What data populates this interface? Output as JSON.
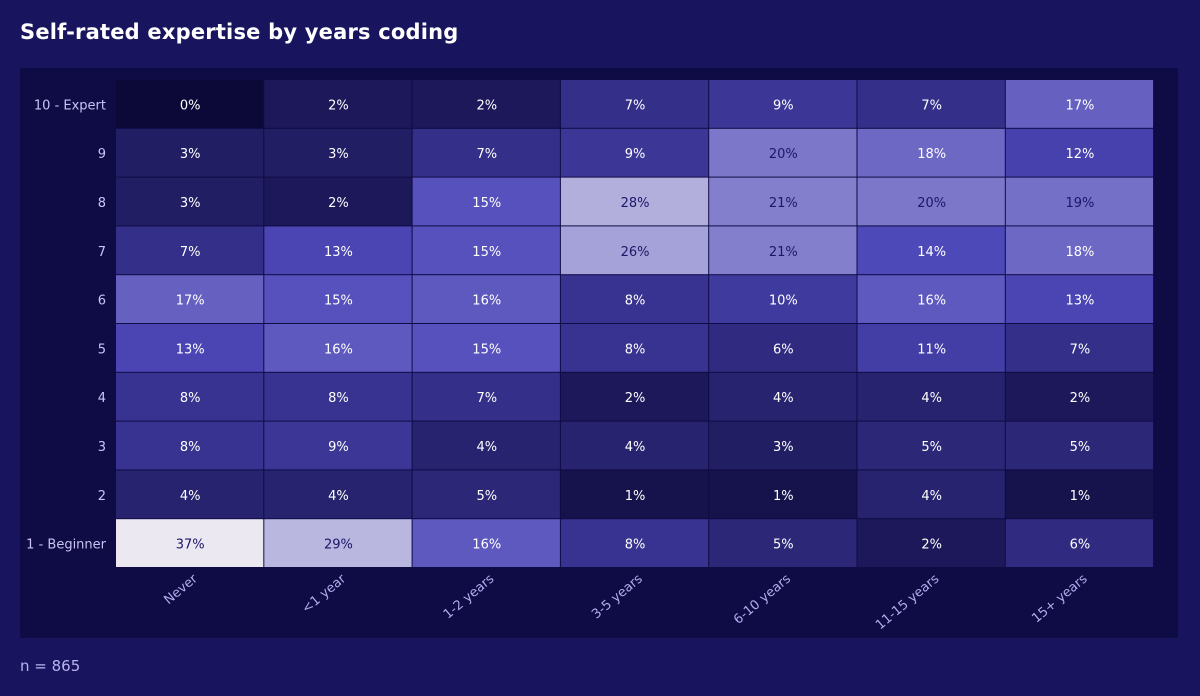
{
  "title": "Self-rated expertise by years coding",
  "footnote": "n = 865",
  "chart_data": {
    "type": "heatmap",
    "title": "Self-rated expertise by years coding",
    "x": [
      "Never",
      "<1 year",
      "1-2 years",
      "3-5 years",
      "6-10 years",
      "11-15 years",
      "15+ years"
    ],
    "y": [
      "10 - Expert",
      "9",
      "8",
      "7",
      "6",
      "5",
      "4",
      "3",
      "2",
      "1 - Beginner"
    ],
    "values": [
      [
        0,
        2,
        2,
        7,
        9,
        7,
        17
      ],
      [
        3,
        3,
        7,
        9,
        20,
        18,
        12
      ],
      [
        3,
        2,
        15,
        28,
        21,
        20,
        19
      ],
      [
        7,
        13,
        15,
        26,
        21,
        14,
        18
      ],
      [
        17,
        15,
        16,
        8,
        10,
        16,
        13
      ],
      [
        13,
        16,
        15,
        8,
        6,
        11,
        7
      ],
      [
        8,
        8,
        7,
        2,
        4,
        4,
        2
      ],
      [
        8,
        9,
        4,
        4,
        3,
        5,
        5
      ],
      [
        4,
        4,
        5,
        1,
        1,
        4,
        1
      ],
      [
        37,
        29,
        16,
        8,
        5,
        2,
        6
      ]
    ],
    "unit": "%",
    "colors": {
      "low": "#0c0838",
      "mid": "#4c47b8",
      "high": "#ebe8f2",
      "text_light": "#ffffff",
      "text_dark": "#1c1768"
    }
  }
}
